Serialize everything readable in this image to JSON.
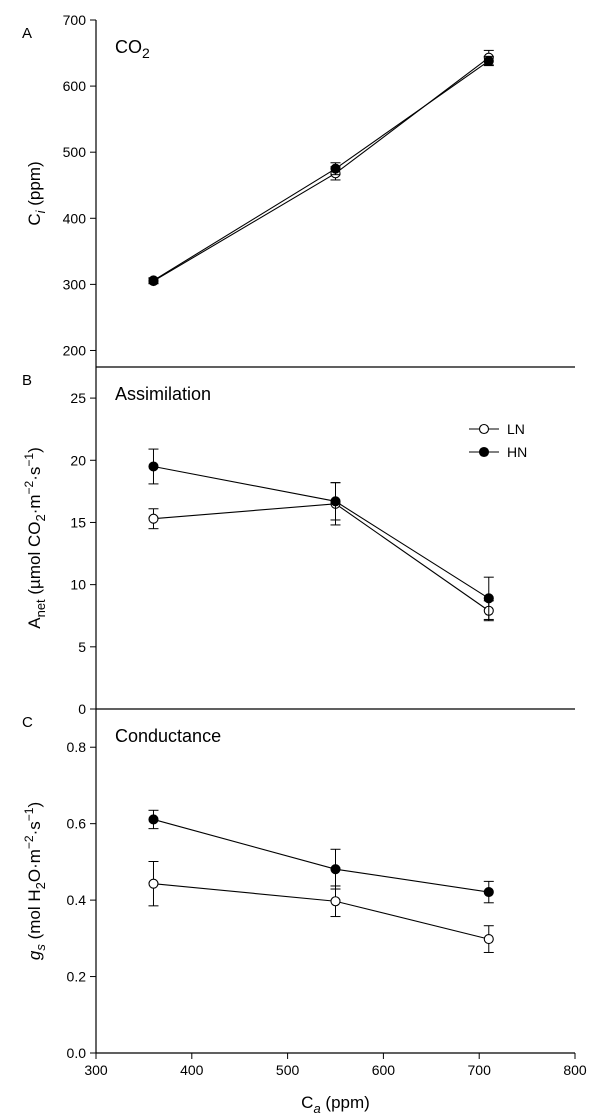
{
  "chart_data": [
    {
      "type": "line",
      "panel_label": "A",
      "title": "CO2",
      "title_rich": {
        "base": "CO",
        "sub": "2"
      },
      "ylabel_rich": {
        "base": "C",
        "sub": "i",
        "rest": " (ppm)"
      },
      "xlim": [
        300,
        800
      ],
      "ylim": [
        175,
        700
      ],
      "yticks": [
        200,
        300,
        400,
        500,
        600,
        700
      ],
      "series": [
        {
          "name": "LN",
          "marker": "open",
          "x": [
            360,
            550,
            710
          ],
          "y": [
            305,
            468,
            643
          ],
          "err": [
            4,
            10,
            11
          ]
        },
        {
          "name": "HN",
          "marker": "filled",
          "x": [
            360,
            550,
            710
          ],
          "y": [
            306,
            475,
            638
          ],
          "err": [
            4,
            9,
            7
          ]
        }
      ]
    },
    {
      "type": "line",
      "panel_label": "B",
      "title": "Assimilation",
      "ylabel_rich": {
        "base": "A",
        "sub": "net",
        "rest": " (µmol CO",
        "sub2": "2",
        "rest2": "·m",
        "sup": "−2",
        "rest3": "·s",
        "sup2": "−1",
        "rest4": ")"
      },
      "xlim": [
        300,
        800
      ],
      "ylim": [
        0,
        27.5
      ],
      "yticks": [
        0,
        5,
        10,
        15,
        20,
        25
      ],
      "legend": {
        "position": "top-right",
        "entries": [
          {
            "label": "LN",
            "marker": "open"
          },
          {
            "label": "HN",
            "marker": "filled"
          }
        ]
      },
      "series": [
        {
          "name": "LN",
          "marker": "open",
          "x": [
            360,
            550,
            710
          ],
          "y": [
            15.3,
            16.5,
            7.9
          ],
          "err": [
            0.8,
            1.7,
            0.8
          ]
        },
        {
          "name": "HN",
          "marker": "filled",
          "x": [
            360,
            550,
            710
          ],
          "y": [
            19.5,
            16.7,
            8.9
          ],
          "err": [
            1.4,
            1.5,
            1.7
          ]
        }
      ]
    },
    {
      "type": "line",
      "panel_label": "C",
      "title": "Conductance",
      "ylabel_rich": {
        "base": "g",
        "sub": "s",
        "rest": " (mol H",
        "sub2": "2",
        "rest2": "O·m",
        "sup": "−2",
        "rest3": "·s",
        "sup2": "−1",
        "rest4": ")"
      },
      "xlabel_rich": {
        "base": "C",
        "sub": "a",
        "rest": " (ppm)"
      },
      "xlim": [
        300,
        800
      ],
      "xticks": [
        300,
        400,
        500,
        600,
        700,
        800
      ],
      "ylim": [
        0,
        0.9
      ],
      "yticks": [
        0.0,
        0.2,
        0.4,
        0.6,
        0.8
      ],
      "series": [
        {
          "name": "LN",
          "marker": "open",
          "x": [
            360,
            550,
            710
          ],
          "y": [
            0.443,
            0.397,
            0.298
          ],
          "err": [
            0.058,
            0.04,
            0.035
          ]
        },
        {
          "name": "HN",
          "marker": "filled",
          "x": [
            360,
            550,
            710
          ],
          "y": [
            0.611,
            0.481,
            0.421
          ],
          "err": [
            0.024,
            0.052,
            0.028
          ]
        }
      ]
    }
  ]
}
